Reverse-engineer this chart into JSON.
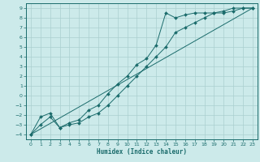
{
  "xlabel": "Humidex (Indice chaleur)",
  "bg_color": "#cceaea",
  "line_color": "#1a6b6b",
  "grid_color": "#aacfcf",
  "xlim": [
    -0.5,
    23.5
  ],
  "ylim": [
    -4.5,
    9.5
  ],
  "xticks": [
    0,
    1,
    2,
    3,
    4,
    5,
    6,
    7,
    8,
    9,
    10,
    11,
    12,
    13,
    14,
    15,
    16,
    17,
    18,
    19,
    20,
    21,
    22,
    23
  ],
  "yticks": [
    -4,
    -3,
    -2,
    -1,
    0,
    1,
    2,
    3,
    4,
    5,
    6,
    7,
    8,
    9
  ],
  "line1_x": [
    0,
    1,
    2,
    3,
    4,
    5,
    6,
    7,
    8,
    9,
    10,
    11,
    12,
    13,
    14,
    15,
    16,
    17,
    18,
    19,
    20,
    21,
    22,
    23
  ],
  "line1_y": [
    -4,
    -3,
    -2.2,
    -3.3,
    -3.0,
    -2.8,
    -2.2,
    -1.8,
    -1.0,
    0.0,
    1.0,
    2.0,
    3.0,
    4.0,
    5.0,
    6.5,
    7.0,
    7.5,
    8.0,
    8.5,
    8.5,
    8.7,
    9.0,
    9.0
  ],
  "line2_x": [
    0,
    1,
    2,
    3,
    4,
    5,
    6,
    7,
    8,
    9,
    10,
    11,
    12,
    13,
    14,
    15,
    16,
    17,
    18,
    19,
    20,
    21,
    22,
    23
  ],
  "line2_y": [
    -4,
    -2.2,
    -1.8,
    -3.3,
    -2.8,
    -2.5,
    -1.5,
    -1.0,
    0.2,
    1.2,
    2.0,
    3.2,
    3.8,
    5.2,
    8.5,
    8.0,
    8.3,
    8.5,
    8.5,
    8.5,
    8.7,
    9.0,
    9.0,
    9.0
  ],
  "line3_x": [
    0,
    23
  ],
  "line3_y": [
    -4,
    9
  ]
}
